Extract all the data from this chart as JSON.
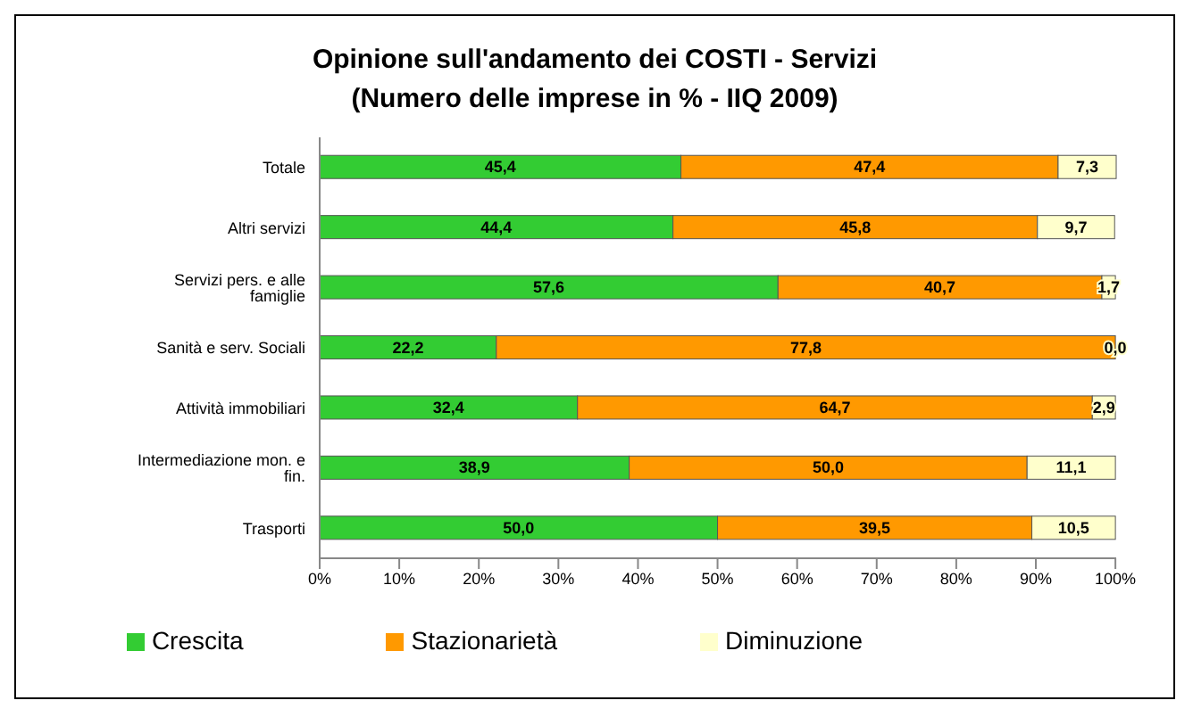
{
  "chart_data": {
    "type": "bar",
    "orientation": "horizontal",
    "stacked": true,
    "title": "Opinione sull'andamento dei COSTI - Servizi",
    "subtitle": "(Numero delle imprese in % -  IIQ 2009)",
    "categories": [
      "Totale",
      "Altri servizi",
      "Servizi pers. e alle famiglie",
      "Sanità e serv. Sociali",
      "Attività immobiliari",
      "Intermediazione mon. e fin.",
      "Trasporti"
    ],
    "series": [
      {
        "name": "Crescita",
        "color": "#33cc33",
        "values": [
          45.4,
          44.4,
          57.6,
          22.2,
          32.4,
          38.9,
          50.0
        ],
        "value_labels": [
          "45,4",
          "44,4",
          "57,6",
          "22,2",
          "32,4",
          "38,9",
          "50,0"
        ]
      },
      {
        "name": "Stazionarietà",
        "color": "#ff9900",
        "values": [
          47.4,
          45.8,
          40.7,
          77.8,
          64.7,
          50.0,
          39.5
        ],
        "value_labels": [
          "47,4",
          "45,8",
          "40,7",
          "77,8",
          "64,7",
          "50,0",
          "39,5"
        ]
      },
      {
        "name": "Diminuzione",
        "color": "#ffffcc",
        "values": [
          7.3,
          9.7,
          1.7,
          0.0,
          2.9,
          11.1,
          10.5
        ],
        "value_labels": [
          "7,3",
          "9,7",
          "1,7",
          "0,0",
          "2,9",
          "11,1",
          "10,5"
        ]
      }
    ],
    "xlim": [
      0,
      100
    ],
    "xticks": [
      {
        "value": 0,
        "label": "0%"
      },
      {
        "value": 10,
        "label": "10%"
      },
      {
        "value": 20,
        "label": "20%"
      },
      {
        "value": 30,
        "label": "30%"
      },
      {
        "value": 40,
        "label": "40%"
      },
      {
        "value": 50,
        "label": "50%"
      },
      {
        "value": 60,
        "label": "60%"
      },
      {
        "value": 70,
        "label": "70%"
      },
      {
        "value": 80,
        "label": "80%"
      },
      {
        "value": 90,
        "label": "90%"
      },
      {
        "value": 100,
        "label": "100%"
      }
    ],
    "legend": "bottom"
  }
}
